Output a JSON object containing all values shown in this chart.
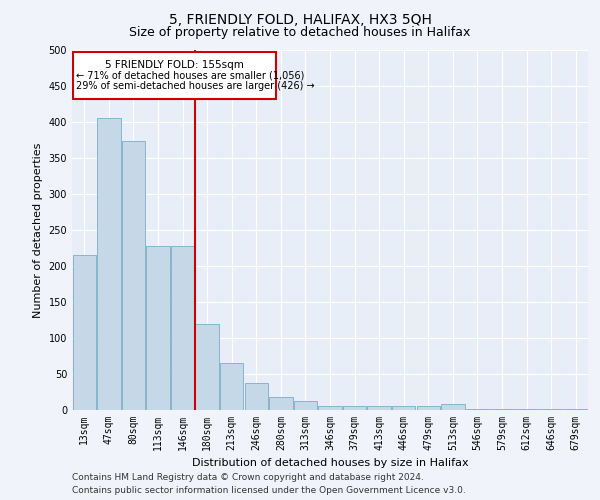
{
  "title": "5, FRIENDLY FOLD, HALIFAX, HX3 5QH",
  "subtitle": "Size of property relative to detached houses in Halifax",
  "xlabel": "Distribution of detached houses by size in Halifax",
  "ylabel": "Number of detached properties",
  "categories": [
    "13sqm",
    "47sqm",
    "80sqm",
    "113sqm",
    "146sqm",
    "180sqm",
    "213sqm",
    "246sqm",
    "280sqm",
    "313sqm",
    "346sqm",
    "379sqm",
    "413sqm",
    "446sqm",
    "479sqm",
    "513sqm",
    "546sqm",
    "579sqm",
    "612sqm",
    "646sqm",
    "679sqm"
  ],
  "values": [
    215,
    405,
    373,
    228,
    228,
    120,
    65,
    38,
    18,
    12,
    6,
    6,
    6,
    6,
    6,
    8,
    2,
    2,
    1,
    1,
    1
  ],
  "bar_color": "#c5d8e8",
  "bar_edge_color": "#7aadcc",
  "annotation_line1": "5 FRIENDLY FOLD: 155sqm",
  "annotation_line2": "← 71% of detached houses are smaller (1,056)",
  "annotation_line3": "29% of semi-detached houses are larger (426) →",
  "annotation_box_color": "#ffffff",
  "annotation_box_edge_color": "#cc0000",
  "vline_color": "#cc0000",
  "vline_x": 4.5,
  "footer1": "Contains HM Land Registry data © Crown copyright and database right 2024.",
  "footer2": "Contains public sector information licensed under the Open Government Licence v3.0.",
  "ylim": [
    0,
    500
  ],
  "yticks": [
    0,
    50,
    100,
    150,
    200,
    250,
    300,
    350,
    400,
    450,
    500
  ],
  "background_color": "#e8eef8",
  "grid_color": "#ffffff",
  "title_fontsize": 10,
  "subtitle_fontsize": 9,
  "axis_label_fontsize": 8,
  "tick_fontsize": 7,
  "footer_fontsize": 6.5,
  "annotation_fontsize": 7.5
}
